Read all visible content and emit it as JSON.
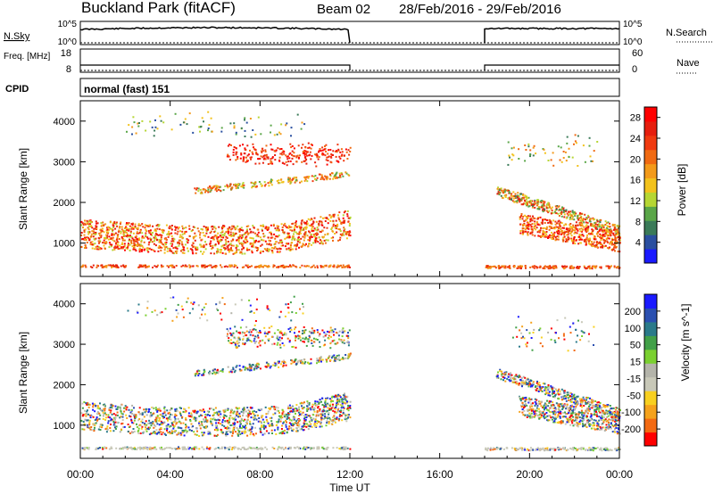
{
  "header": {
    "station": "Buckland Park (fitACF)",
    "beam": "Beam 02",
    "date_range": "28/Feb/2016 - 29/Feb/2016"
  },
  "aux_panels": {
    "nsky_label": "N.Sky",
    "nsky_ticks": [
      "10^5",
      "10^0"
    ],
    "nsearch_label": "N.Search",
    "nsearch_ticks": [
      "10^5",
      "10^0"
    ],
    "freq_label": "Freq. [MHz]",
    "freq_ticks": [
      "18",
      "8"
    ],
    "nave_label": "Nave",
    "nave_ticks": [
      "60",
      "0"
    ],
    "cpid_label": "CPID",
    "cpid_value": "normal (fast) 151"
  },
  "colors": {
    "power": [
      "#1a1aff",
      "#2a4fa0",
      "#3a7a58",
      "#5aa648",
      "#b6d633",
      "#f2c21c",
      "#f39a1a",
      "#f06a12",
      "#f03a10",
      "#e61e0e",
      "#ff0000"
    ],
    "velocity": [
      "#ff0000",
      "#f36a12",
      "#f5a21c",
      "#f8d020",
      "#c8c8b8",
      "#b4b4aa",
      "#7ad030",
      "#42a048",
      "#2a7a8a",
      "#2a4fb0",
      "#1a1aff"
    ]
  },
  "chart_data": [
    {
      "type": "heatmap",
      "name": "power",
      "ylabel": "Slant Range [km]",
      "xlabel": "Time UT",
      "x_ticks": [
        "00:00",
        "04:00",
        "08:00",
        "12:00",
        "16:00",
        "20:00",
        "00:00"
      ],
      "xlim_hours": [
        0,
        24
      ],
      "y_ticks": [
        "1000",
        "2000",
        "3000",
        "4000"
      ],
      "ylim_km": [
        180,
        4500
      ],
      "colorbar_label": "Power [dB]",
      "colorbar_ticks": [
        "4",
        "8",
        "12",
        "16",
        "20",
        "24",
        "28"
      ],
      "colorbar_range": [
        0,
        30
      ],
      "data_gaps_hours": [
        [
          12,
          18
        ]
      ]
    },
    {
      "type": "heatmap",
      "name": "velocity",
      "ylabel": "Slant Range [km]",
      "xlabel": "Time UT",
      "x_ticks": [
        "00:00",
        "04:00",
        "08:00",
        "12:00",
        "16:00",
        "20:00",
        "00:00"
      ],
      "xlim_hours": [
        0,
        24
      ],
      "y_ticks": [
        "1000",
        "2000",
        "3000",
        "4000"
      ],
      "ylim_km": [
        180,
        4500
      ],
      "colorbar_label": "Velocity [m s^-1]",
      "colorbar_ticks": [
        "-200",
        "-100",
        "-50",
        "-15",
        "15",
        "50",
        "100",
        "200"
      ],
      "colorbar_range": [
        -250,
        250
      ],
      "data_gaps_hours": [
        [
          12,
          18
        ]
      ]
    }
  ]
}
